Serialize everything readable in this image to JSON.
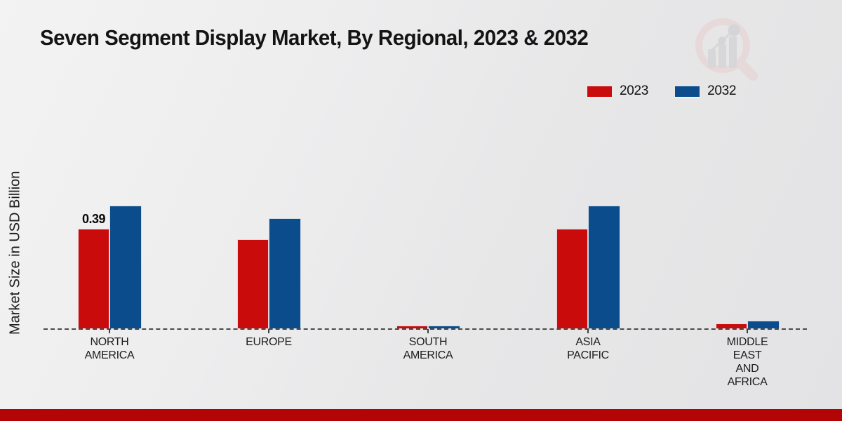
{
  "title": "Seven Segment Display Market, By Regional, 2023 & 2032",
  "ylabel": "Market Size in USD Billion",
  "footer_bar_color": "#b30505",
  "watermark_icon": "magnifier-bar-chart-logo",
  "legend": {
    "items": [
      "2023",
      "2032"
    ],
    "position": "top-right"
  },
  "chart_data": {
    "type": "bar",
    "title": "Seven Segment Display Market, By Regional, 2023 & 2032",
    "xlabel": "",
    "ylabel": "Market Size in USD Billion",
    "categories": [
      "NORTH AMERICA",
      "EUROPE",
      "SOUTH AMERICA",
      "ASIA PACIFIC",
      "MIDDLE EAST AND AFRICA"
    ],
    "category_label_lines": [
      "NORTH\nAMERICA",
      "EUROPE",
      "SOUTH\nAMERICA",
      "ASIA\nPACIFIC",
      "MIDDLE\nEAST\nAND\nAFRICA"
    ],
    "series": [
      {
        "name": "2023",
        "color": "#c90b0b",
        "values": [
          0.39,
          0.35,
          0.01,
          0.39,
          0.02
        ]
      },
      {
        "name": "2032",
        "color": "#0b4d8c",
        "values": [
          0.48,
          0.43,
          0.01,
          0.48,
          0.03
        ]
      }
    ],
    "annotations": [
      {
        "series_index": 0,
        "category_index": 0,
        "text": "0.39"
      }
    ],
    "ylim": [
      0,
      0.55
    ],
    "grid": false,
    "axis_line_style": "dashed",
    "legend_position": "top-right"
  }
}
